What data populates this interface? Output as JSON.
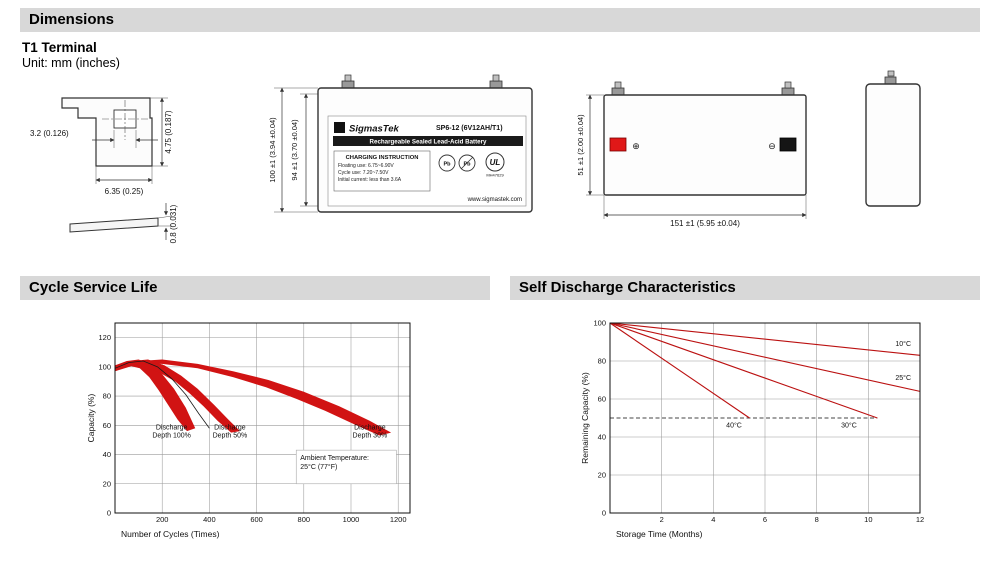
{
  "header": {
    "title": "Dimensions"
  },
  "dimensions": {
    "subtitle": "T1 Terminal",
    "unit_note": "Unit: mm (inches)",
    "terminal_detail": {
      "dim_tab_width": "3.2 (0.126)",
      "dim_tab_height": "4.75 (0.187)",
      "dim_base_width": "6.35 (0.25)",
      "dim_thickness": "0.8 (0.031)"
    },
    "front_view": {
      "dim_total_height": "100 ±1 (3.94 ±0.04)",
      "dim_case_height": "94 ±1 (3.70 ±0.04)",
      "label": {
        "brand": "SigmasTek",
        "model": "SP6-12 (6V12AH/T1)",
        "type_line": "Rechargeable Sealed Lead-Acid Battery",
        "charging_title": "CHARGING INSTRUCTION",
        "charging_line1": "Floating use: 6.75~6.90V",
        "charging_line2": "Cycle use: 7.20~7.50V",
        "charging_line3": "Initial current: less than 3.6A",
        "pb": "Pb",
        "ul": "UL",
        "ul_code": "MH47629",
        "website": "www.sigmastek.com"
      }
    },
    "side_view": {
      "dim_depth": "51 ±1 (2.00 ±0.04)",
      "dim_length": "151 ±1 (5.95 ±0.04)",
      "plus_symbol": "⊕",
      "minus_symbol": "⊖"
    }
  },
  "chart_data": [
    {
      "id": "cycle-service-life",
      "type": "area",
      "title": "Cycle Service Life",
      "xlabel": "Number of Cycles (Times)",
      "ylabel": "Capacity (%)",
      "xlim": [
        0,
        1250
      ],
      "ylim": [
        0,
        130
      ],
      "x_ticks": [
        200,
        400,
        600,
        800,
        1000,
        1200
      ],
      "y_ticks": [
        0,
        20,
        40,
        60,
        80,
        100,
        120
      ],
      "grid": true,
      "legend": "none",
      "series": [
        {
          "name": "Discharge Depth 100%",
          "color": "#d11313",
          "polygon": [
            [
              0,
              101
            ],
            [
              50,
              104
            ],
            [
              100,
              105
            ],
            [
              150,
              102
            ],
            [
              200,
              95
            ],
            [
              250,
              85
            ],
            [
              300,
              72
            ],
            [
              340,
              58
            ],
            [
              305,
              56
            ],
            [
              265,
              64
            ],
            [
              225,
              74
            ],
            [
              185,
              84
            ],
            [
              145,
              93
            ],
            [
              105,
              99
            ],
            [
              55,
              101
            ],
            [
              0,
              97
            ]
          ]
        },
        {
          "name": "Discharge Depth 50%",
          "color": "#d11313",
          "polygon": [
            [
              0,
              101
            ],
            [
              70,
              104
            ],
            [
              140,
              105
            ],
            [
              210,
              101
            ],
            [
              280,
              94
            ],
            [
              350,
              85
            ],
            [
              420,
              74
            ],
            [
              480,
              64
            ],
            [
              530,
              56
            ],
            [
              492,
              55
            ],
            [
              435,
              63
            ],
            [
              375,
              73
            ],
            [
              315,
              82
            ],
            [
              255,
              90
            ],
            [
              190,
              96
            ],
            [
              120,
              100
            ],
            [
              60,
              101
            ],
            [
              0,
              97
            ]
          ]
        },
        {
          "name": "Discharge Depth 30%",
          "color": "#d11313",
          "polygon": [
            [
              0,
              101
            ],
            [
              100,
              104
            ],
            [
              200,
              105
            ],
            [
              350,
              102
            ],
            [
              500,
              97
            ],
            [
              650,
              91
            ],
            [
              800,
              83
            ],
            [
              950,
              73
            ],
            [
              1080,
              63
            ],
            [
              1170,
              55
            ],
            [
              1120,
              53
            ],
            [
              1010,
              61
            ],
            [
              890,
              70
            ],
            [
              770,
              78
            ],
            [
              640,
              86
            ],
            [
              500,
              93
            ],
            [
              350,
              99
            ],
            [
              200,
              102
            ],
            [
              100,
              102
            ],
            [
              0,
              97
            ]
          ]
        }
      ],
      "outline": {
        "color": "#1a1a1a",
        "points": [
          [
            0,
            99
          ],
          [
            60,
            103
          ],
          [
            120,
            104
          ],
          [
            180,
            100
          ],
          [
            240,
            92
          ],
          [
            300,
            81
          ],
          [
            355,
            68
          ],
          [
            400,
            58
          ]
        ]
      },
      "annotations": [
        {
          "x": 240,
          "y": 57,
          "lines": [
            "Discharge",
            "Depth 100%"
          ]
        },
        {
          "x": 487,
          "y": 57,
          "lines": [
            "Discharge",
            "Depth 50%"
          ]
        },
        {
          "x": 1080,
          "y": 57,
          "lines": [
            "Discharge",
            "Depth 30%"
          ]
        },
        {
          "box": {
            "x1": 768,
            "y1": 20,
            "x2": 1192,
            "y2": 43
          },
          "lines": [
            "Ambient Temperature:",
            "25°C (77°F)"
          ]
        }
      ]
    },
    {
      "id": "self-discharge-characteristics",
      "type": "line",
      "title": "Self Discharge Characteristics",
      "xlabel": "Storage Time (Months)",
      "ylabel": "Remaining Capacity (%)",
      "xlim": [
        0,
        12
      ],
      "ylim": [
        0,
        100
      ],
      "x_ticks": [
        2,
        4,
        6,
        8,
        10,
        12
      ],
      "y_ticks": [
        0,
        20,
        40,
        60,
        80,
        100
      ],
      "grid": true,
      "legend": "inline-labels",
      "series": [
        {
          "name": "10°C",
          "color": "#bb1111",
          "points": [
            [
              0,
              100
            ],
            [
              12,
              83
            ]
          ],
          "label_at": [
            11.35,
            88
          ]
        },
        {
          "name": "25°C",
          "color": "#bb1111",
          "points": [
            [
              0,
              100
            ],
            [
              12,
              64
            ]
          ],
          "label_at": [
            11.35,
            70
          ]
        },
        {
          "name": "30°C",
          "color": "#bb1111",
          "points": [
            [
              0,
              100
            ],
            [
              10.35,
              50
            ]
          ],
          "label_at": [
            9.25,
            45
          ]
        },
        {
          "name": "40°C",
          "color": "#bb1111",
          "points": [
            [
              0,
              100
            ],
            [
              5.4,
              50
            ]
          ],
          "label_at": [
            4.8,
            45
          ]
        }
      ],
      "dashed_line": {
        "y": 50,
        "x_from": 0,
        "x_to": 10.35,
        "color": "#444"
      }
    }
  ]
}
